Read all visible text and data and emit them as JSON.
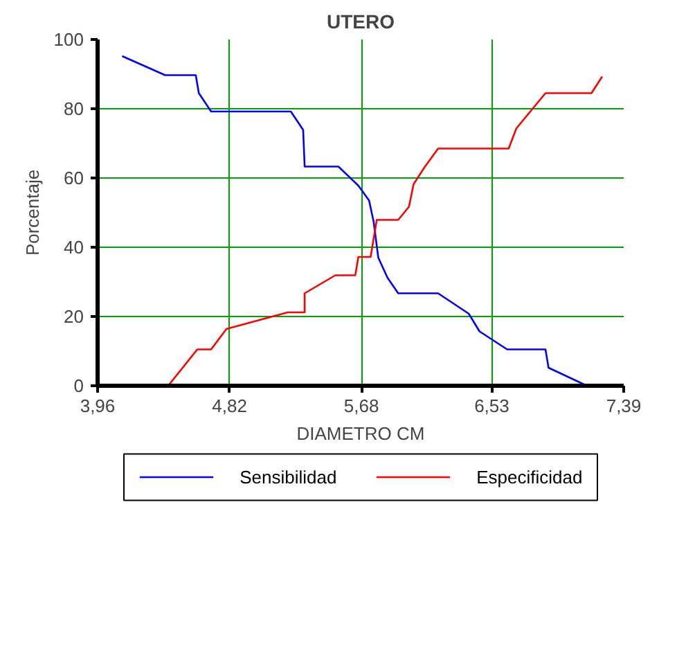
{
  "chart_data": {
    "type": "line",
    "title": "UTERO",
    "xlabel": "DIAMETRO CM",
    "ylabel": "Porcentaje",
    "xlim": [
      3.96,
      7.39
    ],
    "ylim": [
      0,
      100
    ],
    "xticks": [
      {
        "value": 3.96,
        "label": "3,96"
      },
      {
        "value": 4.82,
        "label": "4,82"
      },
      {
        "value": 5.68,
        "label": "5,68"
      },
      {
        "value": 6.53,
        "label": "6,53"
      },
      {
        "value": 7.39,
        "label": "7,39"
      }
    ],
    "yticks": [
      0,
      20,
      40,
      60,
      80,
      100
    ],
    "grid": true,
    "legend": "bottom",
    "marker": "none",
    "line_style": "solid",
    "series": [
      {
        "name": "Sensibilidad",
        "color": "#0000ff",
        "x": [
          4.12,
          4.4,
          4.6,
          4.62,
          4.7,
          5.22,
          5.3,
          5.31,
          5.53,
          5.66,
          5.73,
          5.76,
          5.79,
          5.85,
          5.92,
          6.18,
          6.38,
          6.45,
          6.63,
          6.88,
          6.9,
          7.15,
          7.23
        ],
        "values": [
          95.2,
          89.7,
          89.7,
          84.5,
          79.2,
          79.2,
          73.9,
          63.3,
          63.3,
          57.8,
          53.5,
          47.3,
          37,
          31.2,
          26.7,
          26.7,
          20.8,
          15.7,
          10.5,
          10.5,
          5.2,
          0,
          0
        ]
      },
      {
        "name": "Especificidad",
        "color": "#ff0000",
        "x": [
          4.12,
          4.42,
          4.52,
          4.61,
          4.7,
          4.8,
          5.2,
          5.31,
          5.31,
          5.51,
          5.64,
          5.66,
          5.74,
          5.78,
          5.92,
          5.99,
          6.02,
          6.09,
          6.18,
          6.64,
          6.69,
          6.88,
          7.18,
          7.25
        ],
        "values": [
          0,
          0,
          5.5,
          10.5,
          10.5,
          16.4,
          21.2,
          21.2,
          26.7,
          31.9,
          31.9,
          37.2,
          37.2,
          47.9,
          47.9,
          51.7,
          58.2,
          63,
          68.5,
          68.5,
          74.3,
          84.5,
          84.5,
          89.3
        ]
      }
    ]
  }
}
